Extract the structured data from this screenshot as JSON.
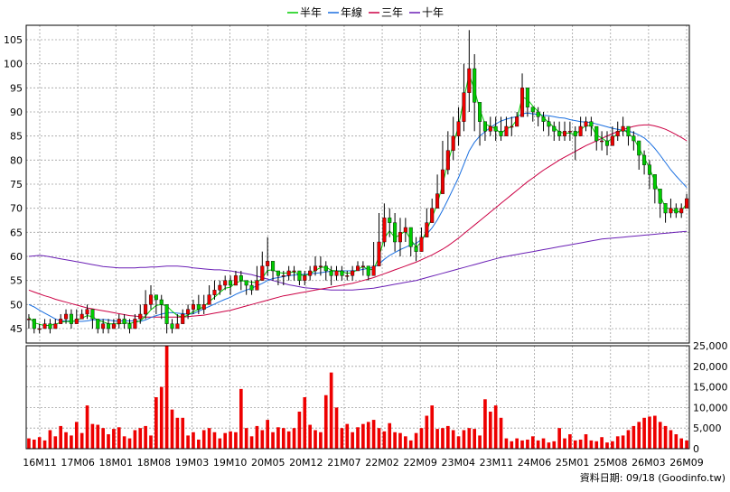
{
  "chart_data": {
    "type": "candlestick",
    "legend": [
      {
        "name": "半年",
        "color": "#00cc00"
      },
      {
        "name": "年線",
        "color": "#1a6fe0"
      },
      {
        "name": "三年",
        "color": "#cc0044"
      },
      {
        "name": "十年",
        "color": "#6a1fb5"
      }
    ],
    "price_axis": {
      "ylim": [
        42,
        108
      ],
      "ticks": [
        45,
        50,
        55,
        60,
        65,
        70,
        75,
        80,
        85,
        90,
        95,
        100,
        105
      ],
      "grid": true
    },
    "volume_axis": {
      "ylim": [
        0,
        25000
      ],
      "ticks": [
        0,
        5000,
        10000,
        15000,
        20000,
        25000
      ],
      "tick_labels": [
        "0",
        "5,000",
        "10,000",
        "15,000",
        "20,000",
        "25,000"
      ],
      "grid": true
    },
    "x_tick_labels": [
      "16M11",
      "17M06",
      "18M01",
      "18M08",
      "19M03",
      "19M10",
      "20M05",
      "20M12",
      "21M07",
      "22M02",
      "22M09",
      "23M04",
      "23M11",
      "24M06",
      "25M01",
      "25M08",
      "26M03",
      "26M09"
    ],
    "up_color": "#ee0000",
    "down_color": "#00cc00",
    "volume_color": "#ee0000",
    "footer": "資料日期: 09/18 (Goodinfo.tw)",
    "close": [
      47,
      45,
      45,
      46,
      45,
      46,
      47,
      48,
      46,
      47,
      48,
      49,
      47,
      45,
      46,
      45,
      46,
      47,
      46,
      45,
      47,
      48,
      50,
      52,
      51,
      50,
      46,
      45,
      46,
      48,
      49,
      50,
      49,
      50,
      52,
      53,
      54,
      55,
      54,
      56,
      55,
      54,
      53,
      55,
      58,
      59,
      57,
      56,
      56,
      57,
      57,
      55,
      56,
      57,
      58,
      58,
      57,
      56,
      57,
      56,
      56,
      57,
      58,
      58,
      56,
      58,
      63,
      68,
      67,
      63,
      65,
      66,
      62,
      61,
      64,
      67,
      70,
      73,
      78,
      82,
      85,
      88,
      94,
      99,
      92,
      88,
      86,
      87,
      86,
      85,
      87,
      87,
      89,
      95,
      91,
      90,
      89,
      88,
      87,
      86,
      85,
      86,
      86,
      85,
      87,
      88,
      87,
      84,
      84,
      83,
      85,
      86,
      87,
      85,
      84,
      81,
      79,
      77,
      74,
      71,
      69,
      70,
      69,
      70,
      72
    ],
    "high": [
      48,
      47,
      46,
      47,
      47,
      47,
      48,
      49,
      49,
      49,
      49,
      50,
      49,
      47,
      47,
      47,
      47,
      48,
      48,
      47,
      48,
      50,
      53,
      54,
      52,
      52,
      49,
      47,
      48,
      49,
      50,
      51,
      52,
      52,
      54,
      55,
      55,
      56,
      56,
      57,
      57,
      55,
      55,
      58,
      61,
      64,
      59,
      57,
      57,
      58,
      58,
      57,
      57,
      58,
      60,
      60,
      59,
      58,
      58,
      58,
      57,
      58,
      59,
      59,
      58,
      63,
      69,
      71,
      70,
      69,
      68,
      68,
      66,
      64,
      66,
      70,
      72,
      77,
      84,
      86,
      89,
      91,
      100,
      107,
      102,
      90,
      88,
      89,
      89,
      89,
      89,
      89,
      90,
      98,
      94,
      91,
      91,
      90,
      89,
      88,
      88,
      88,
      88,
      87,
      89,
      89,
      89,
      87,
      86,
      86,
      87,
      88,
      89,
      87,
      86,
      83,
      82,
      80,
      77,
      74,
      71,
      72,
      71,
      71,
      73
    ],
    "low": [
      45,
      44,
      44,
      45,
      44,
      45,
      46,
      46,
      45,
      46,
      47,
      47,
      45,
      44,
      44,
      44,
      45,
      45,
      45,
      44,
      46,
      46,
      47,
      49,
      48,
      47,
      44,
      44,
      45,
      46,
      47,
      48,
      48,
      48,
      50,
      51,
      52,
      53,
      52,
      54,
      53,
      52,
      52,
      53,
      56,
      56,
      55,
      54,
      54,
      55,
      55,
      54,
      54,
      55,
      56,
      56,
      55,
      54,
      55,
      55,
      55,
      55,
      57,
      56,
      55,
      56,
      59,
      62,
      64,
      61,
      60,
      63,
      60,
      59,
      62,
      64,
      67,
      70,
      73,
      77,
      80,
      83,
      86,
      90,
      86,
      83,
      84,
      85,
      84,
      84,
      85,
      85,
      87,
      89,
      89,
      88,
      87,
      86,
      85,
      84,
      84,
      84,
      84,
      80,
      85,
      86,
      85,
      82,
      82,
      81,
      83,
      84,
      85,
      83,
      82,
      78,
      77,
      74,
      71,
      68,
      67,
      68,
      68,
      68,
      70
    ],
    "ma_half": [
      47.4,
      46.2,
      45.9,
      45.6,
      45.7,
      45.9,
      46.3,
      46.5,
      46.4,
      46.7,
      47.2,
      47.7,
      47.5,
      46.7,
      46.4,
      46.0,
      46.0,
      46.0,
      46.2,
      46.1,
      46.3,
      46.6,
      47.6,
      48.9,
      49.8,
      50.0,
      49.7,
      48.6,
      47.7,
      47.4,
      47.8,
      48.5,
      49.0,
      49.6,
      50.6,
      51.5,
      52.5,
      53.4,
      53.6,
      54.5,
      54.9,
      54.9,
      54.6,
      54.6,
      55.5,
      57.1,
      57.2,
      56.7,
      56.5,
      56.6,
      56.8,
      56.2,
      56.0,
      56.4,
      57.1,
      57.7,
      57.8,
      57.1,
      57.0,
      56.8,
      56.5,
      56.6,
      57.3,
      57.9,
      57.2,
      57.3,
      59.9,
      63.8,
      65.3,
      63.9,
      64.5,
      65.3,
      63.5,
      61.9,
      63.0,
      65.4,
      68.1,
      70.9,
      75.0,
      79.5,
      83.3,
      87.1,
      92.7,
      97.8,
      94.6,
      90.5,
      87.5,
      87.0,
      86.5,
      85.5,
      86.5,
      86.9,
      88.4,
      93.1,
      92.6,
      91.2,
      90.1,
      88.8,
      87.8,
      86.8,
      85.8,
      85.6,
      85.6,
      85.3,
      86.3,
      87.2,
      87.1,
      85.2,
      84.6,
      83.8,
      84.5,
      85.6,
      86.5,
      85.5,
      84.6,
      82.5,
      80.5,
      78.3,
      75.6,
      72.7,
      70.1,
      69.9,
      69.2,
      69.4,
      71.0
    ],
    "ma_year": [
      50.0,
      49.5,
      48.8,
      48.2,
      47.6,
      47.0,
      46.6,
      46.6,
      46.6,
      46.5,
      46.5,
      46.6,
      46.8,
      46.8,
      46.9,
      46.8,
      46.6,
      46.6,
      46.6,
      46.6,
      46.6,
      46.5,
      46.8,
      47.3,
      47.7,
      48.0,
      48.3,
      48.3,
      48.2,
      48.1,
      48.0,
      48.1,
      48.6,
      49.1,
      49.6,
      50.1,
      50.6,
      51.1,
      51.5,
      52.1,
      52.6,
      53.0,
      53.4,
      53.9,
      54.4,
      55.0,
      55.4,
      55.6,
      55.8,
      56.0,
      56.1,
      56.2,
      56.3,
      56.4,
      56.5,
      56.6,
      56.8,
      56.9,
      57.0,
      57.0,
      57.0,
      57.0,
      57.1,
      57.3,
      57.5,
      57.7,
      58.4,
      59.4,
      60.2,
      60.8,
      61.4,
      61.9,
      62.4,
      62.7,
      63.5,
      64.6,
      65.9,
      67.6,
      69.6,
      71.8,
      74.1,
      76.4,
      79.1,
      81.9,
      83.7,
      85.0,
      85.9,
      86.8,
      87.5,
      88.1,
      88.5,
      88.8,
      89.0,
      89.6,
      89.8,
      89.6,
      89.5,
      89.3,
      89.2,
      89.0,
      88.8,
      88.7,
      88.4,
      88.2,
      88.0,
      87.9,
      87.8,
      87.5,
      87.2,
      86.9,
      86.6,
      86.4,
      86.2,
      86.0,
      85.7,
      85.2,
      84.6,
      83.6,
      82.4,
      81.0,
      79.5,
      78.0,
      76.7,
      75.5,
      74.3
    ],
    "ma_3yr": [
      53.0,
      52.6,
      52.2,
      51.8,
      51.5,
      51.1,
      50.8,
      50.5,
      50.2,
      49.9,
      49.6,
      49.3,
      49.1,
      48.9,
      48.7,
      48.5,
      48.3,
      48.1,
      47.9,
      47.7,
      47.6,
      47.5,
      47.4,
      47.4,
      47.4,
      47.4,
      47.4,
      47.4,
      47.4,
      47.4,
      47.5,
      47.6,
      47.7,
      47.8,
      48.0,
      48.2,
      48.4,
      48.6,
      48.8,
      49.1,
      49.4,
      49.7,
      50.0,
      50.3,
      50.6,
      50.9,
      51.2,
      51.5,
      51.8,
      52.0,
      52.2,
      52.4,
      52.6,
      52.8,
      53.0,
      53.2,
      53.4,
      53.6,
      53.8,
      54.0,
      54.2,
      54.4,
      54.7,
      55.0,
      55.3,
      55.6,
      56.0,
      56.4,
      56.8,
      57.2,
      57.6,
      58.0,
      58.4,
      58.8,
      59.3,
      59.8,
      60.3,
      60.9,
      61.5,
      62.2,
      63.0,
      63.8,
      64.7,
      65.6,
      66.5,
      67.4,
      68.3,
      69.2,
      70.1,
      71.0,
      71.9,
      72.8,
      73.7,
      74.6,
      75.5,
      76.3,
      77.1,
      77.9,
      78.6,
      79.3,
      80.0,
      80.6,
      81.2,
      81.8,
      82.4,
      83.0,
      83.5,
      84.0,
      84.5,
      85.0,
      85.5,
      85.9,
      86.3,
      86.7,
      87.0,
      87.2,
      87.3,
      87.3,
      87.1,
      86.8,
      86.4,
      85.9,
      85.3,
      84.7,
      84.0
    ],
    "ma_10yr": [
      60.0,
      60.1,
      60.2,
      60.1,
      59.9,
      59.7,
      59.5,
      59.3,
      59.1,
      58.9,
      58.7,
      58.5,
      58.3,
      58.1,
      57.9,
      57.8,
      57.7,
      57.6,
      57.6,
      57.6,
      57.6,
      57.7,
      57.7,
      57.8,
      57.8,
      57.9,
      58.0,
      58.0,
      58.0,
      57.9,
      57.8,
      57.6,
      57.5,
      57.4,
      57.3,
      57.2,
      57.2,
      57.1,
      57.0,
      56.8,
      56.6,
      56.4,
      56.2,
      55.9,
      55.6,
      55.3,
      55.0,
      54.7,
      54.4,
      54.1,
      53.9,
      53.7,
      53.5,
      53.4,
      53.3,
      53.2,
      53.1,
      53.0,
      53.0,
      53.0,
      53.0,
      53.0,
      53.1,
      53.2,
      53.3,
      53.4,
      53.6,
      53.8,
      54.0,
      54.2,
      54.4,
      54.6,
      54.8,
      55.0,
      55.3,
      55.6,
      55.9,
      56.2,
      56.5,
      56.8,
      57.1,
      57.4,
      57.7,
      58.0,
      58.3,
      58.6,
      58.9,
      59.2,
      59.5,
      59.8,
      60.0,
      60.2,
      60.4,
      60.6,
      60.8,
      61.0,
      61.2,
      61.4,
      61.6,
      61.8,
      62.0,
      62.2,
      62.4,
      62.6,
      62.8,
      63.0,
      63.2,
      63.4,
      63.6,
      63.7,
      63.8,
      63.9,
      64.0,
      64.1,
      64.2,
      64.3,
      64.4,
      64.5,
      64.6,
      64.7,
      64.8,
      64.9,
      65.0,
      65.1,
      65.2
    ],
    "volume": [
      2500,
      2200,
      2800,
      2000,
      4500,
      3000,
      5500,
      4000,
      3200,
      6500,
      3800,
      10500,
      6000,
      5800,
      5000,
      3500,
      4800,
      5200,
      3000,
      2500,
      4500,
      5000,
      5500,
      3200,
      12500,
      15000,
      25000,
      9500,
      7500,
      7500,
      3200,
      4000,
      2200,
      4500,
      5000,
      4000,
      2500,
      3800,
      4200,
      4000,
      14500,
      5000,
      3000,
      5500,
      4500,
      7000,
      4000,
      5200,
      5000,
      4200,
      5000,
      9000,
      12500,
      5800,
      4500,
      4000,
      13000,
      18500,
      10000,
      5000,
      6000,
      4000,
      5200,
      6000,
      6500,
      7000,
      5000,
      4200,
      6200,
      4000,
      3800,
      3000,
      2000,
      3800,
      5000,
      8000,
      10500,
      4800,
      5000,
      5500,
      4500,
      3000,
      4500,
      5000,
      4800,
      3200,
      12000,
      9000,
      10500,
      7500,
      2500,
      1800,
      2500,
      2000,
      2200,
      3000,
      2000,
      2500,
      1500,
      1800,
      5000,
      2500,
      3500,
      2000,
      2200,
      3500,
      2000,
      1800,
      2800,
      1500,
      1800,
      3000,
      3200,
      4500,
      5500,
      6500,
      7500,
      7800,
      8000,
      6500,
      5500,
      4500,
      3500,
      2500,
      2000
    ]
  }
}
